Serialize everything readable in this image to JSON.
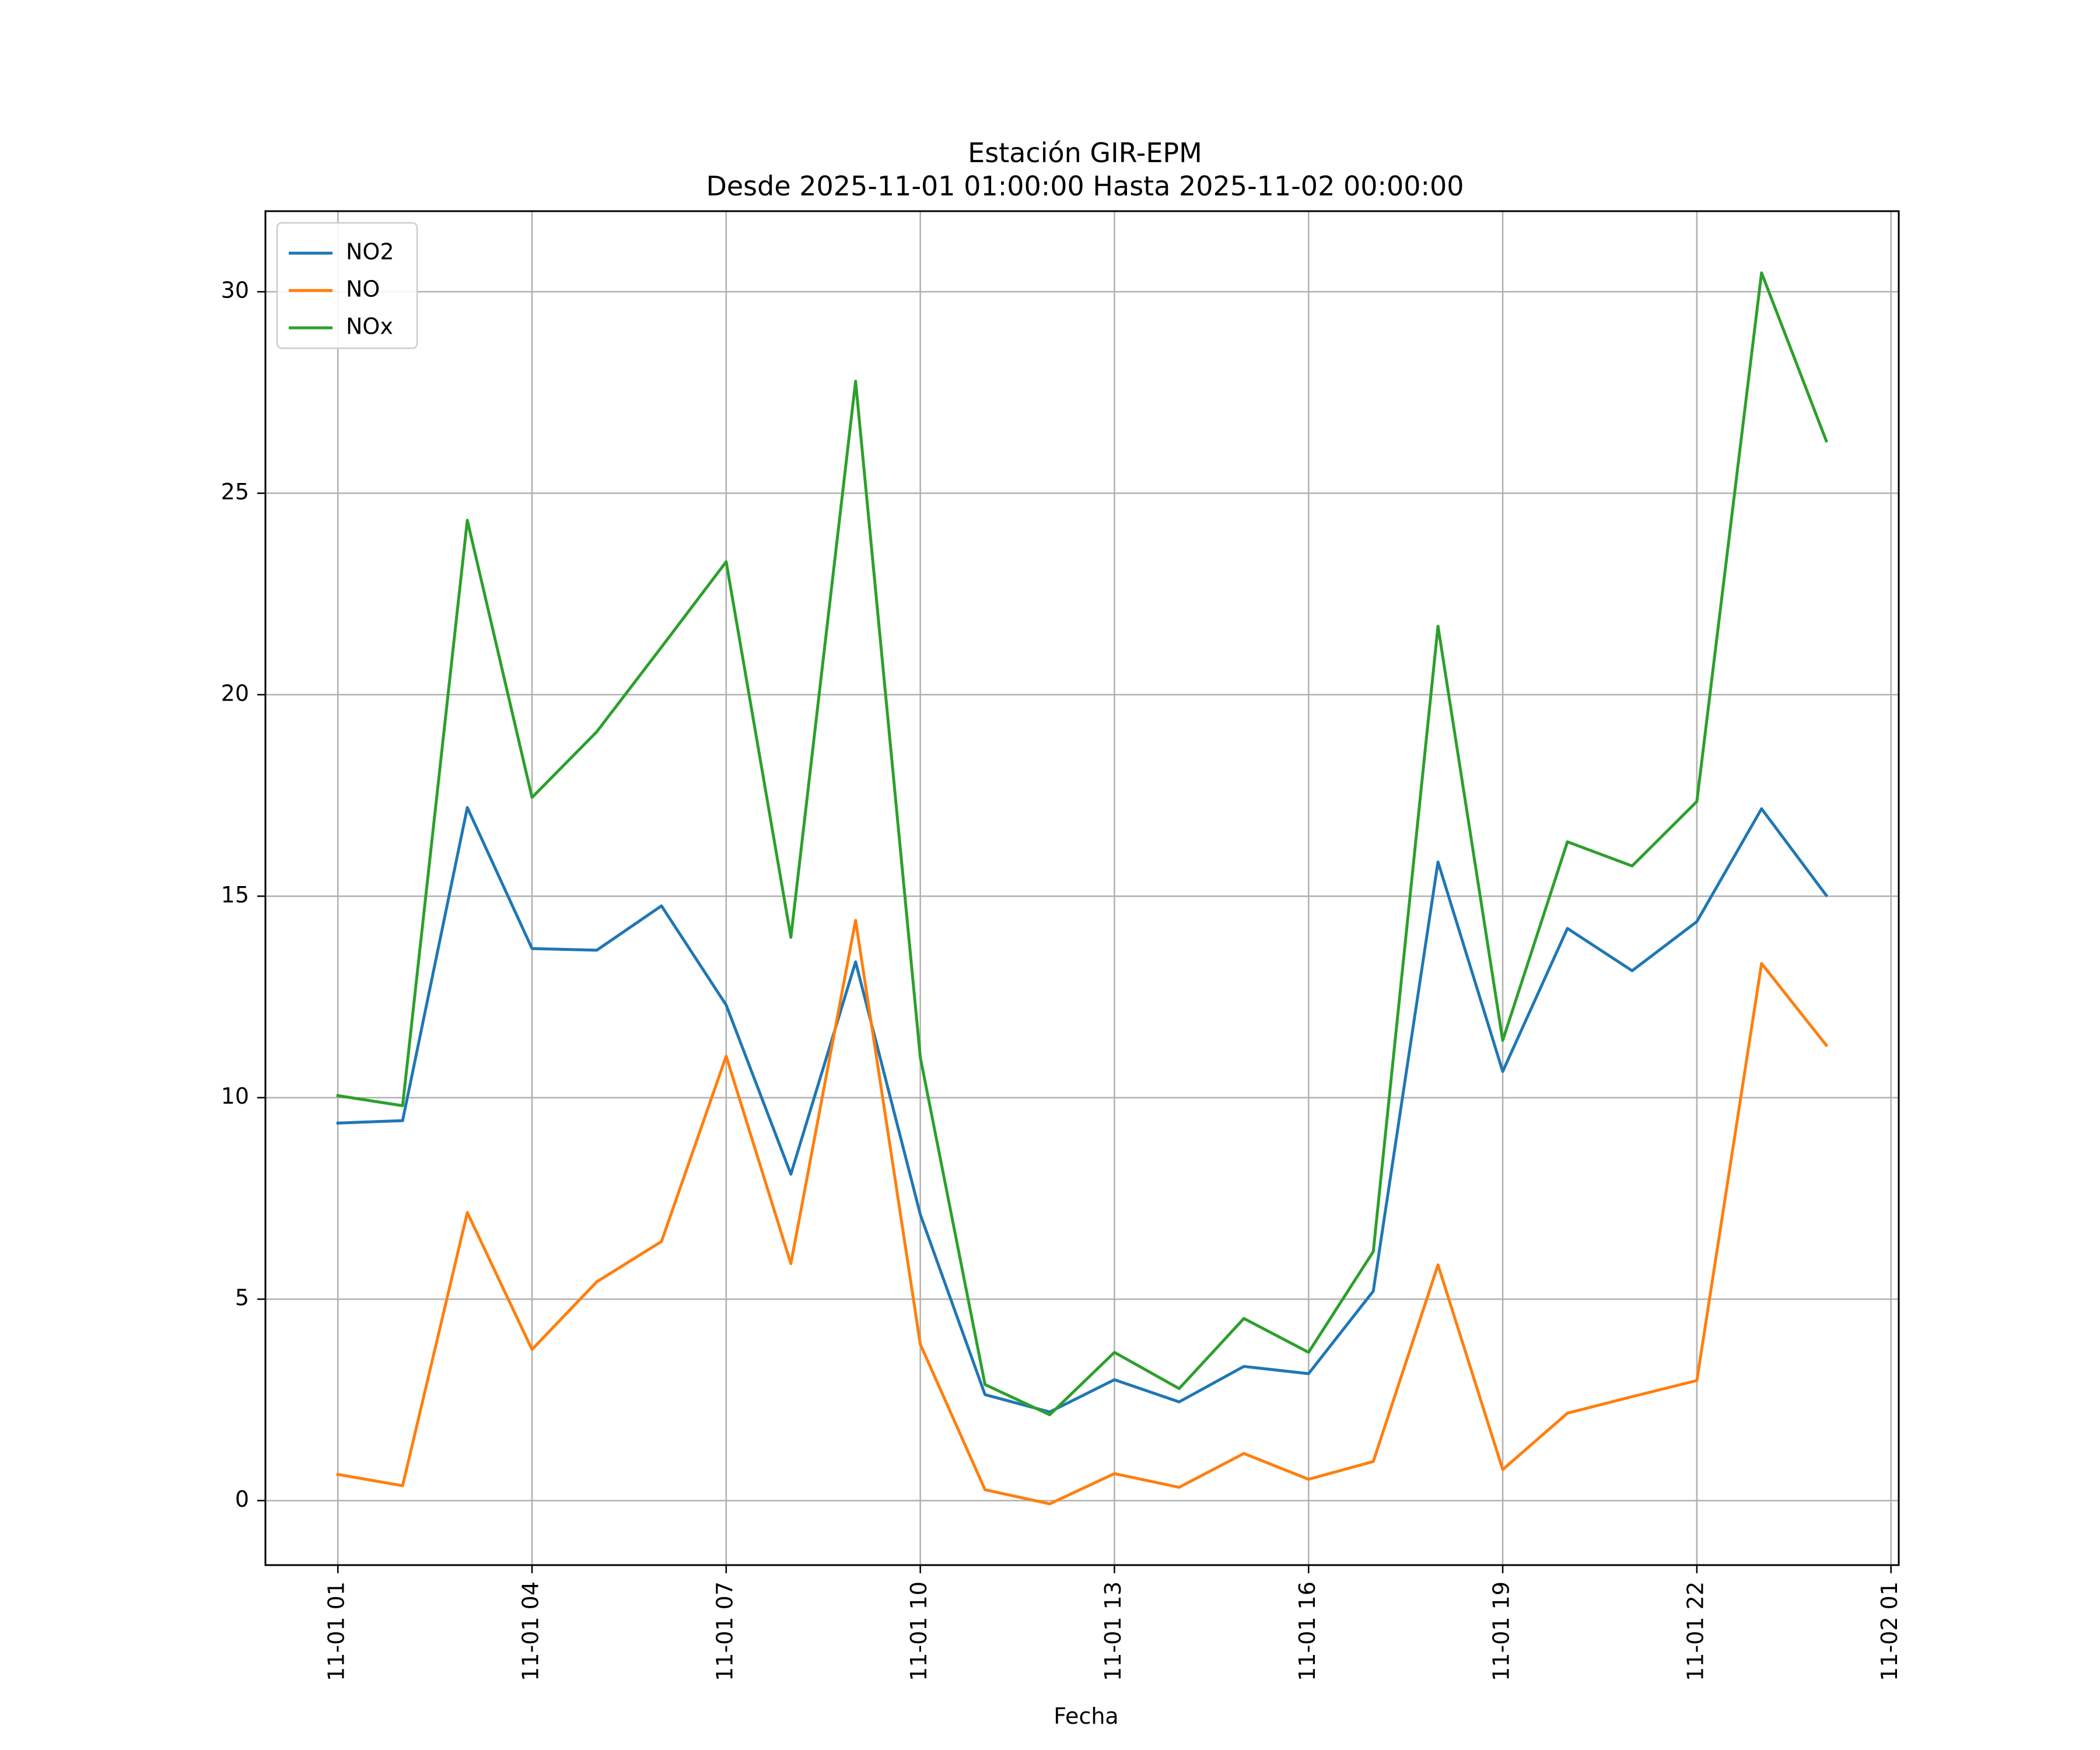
{
  "chart_data": {
    "type": "line",
    "title_line1": "Estación GIR-EPM",
    "title_line2": "Desde 2025-11-01 01:00:00 Hasta 2025-11-02 00:00:00",
    "xlabel": "Fecha",
    "ylabel": "",
    "x_hours": [
      1,
      2,
      3,
      4,
      5,
      6,
      7,
      8,
      9,
      10,
      11,
      12,
      13,
      14,
      15,
      16,
      17,
      18,
      19,
      20,
      21,
      22,
      23,
      24
    ],
    "xlim_hours": [
      -0.12,
      25.12
    ],
    "x_ticks": [
      {
        "hour": 1,
        "label": "11-01 01"
      },
      {
        "hour": 4,
        "label": "11-01 04"
      },
      {
        "hour": 7,
        "label": "11-01 07"
      },
      {
        "hour": 10,
        "label": "11-01 10"
      },
      {
        "hour": 13,
        "label": "11-01 13"
      },
      {
        "hour": 16,
        "label": "11-01 16"
      },
      {
        "hour": 19,
        "label": "11-01 19"
      },
      {
        "hour": 22,
        "label": "11-01 22"
      },
      {
        "hour": 25,
        "label": "11-02 01"
      }
    ],
    "ylim": [
      -1.6,
      32.0
    ],
    "y_ticks": [
      0,
      5,
      10,
      15,
      20,
      25,
      30
    ],
    "grid": true,
    "legend_position": "top-left",
    "series": [
      {
        "name": "NO2",
        "color": "#1f77b4",
        "values": [
          9.37,
          9.43,
          17.2,
          13.7,
          13.66,
          14.76,
          12.3,
          8.1,
          13.37,
          7.1,
          2.63,
          2.2,
          3.0,
          2.45,
          3.33,
          3.15,
          5.2,
          15.85,
          10.65,
          14.2,
          13.15,
          14.37,
          17.17,
          15.02
        ]
      },
      {
        "name": "NO",
        "color": "#ff7f0e",
        "values": [
          0.65,
          0.37,
          7.15,
          3.75,
          5.43,
          6.43,
          11.03,
          5.88,
          14.4,
          3.88,
          0.27,
          -0.08,
          0.67,
          0.33,
          1.17,
          0.53,
          0.97,
          5.85,
          0.77,
          2.17,
          2.58,
          2.98,
          13.33,
          11.3
        ]
      },
      {
        "name": "NOx",
        "color": "#2ca02c",
        "values": [
          10.05,
          9.8,
          24.33,
          17.45,
          19.08,
          21.18,
          23.3,
          13.98,
          27.78,
          11.0,
          2.88,
          2.13,
          3.68,
          2.78,
          4.52,
          3.68,
          6.18,
          21.7,
          11.42,
          16.35,
          15.75,
          17.35,
          30.47,
          26.3
        ]
      }
    ]
  }
}
